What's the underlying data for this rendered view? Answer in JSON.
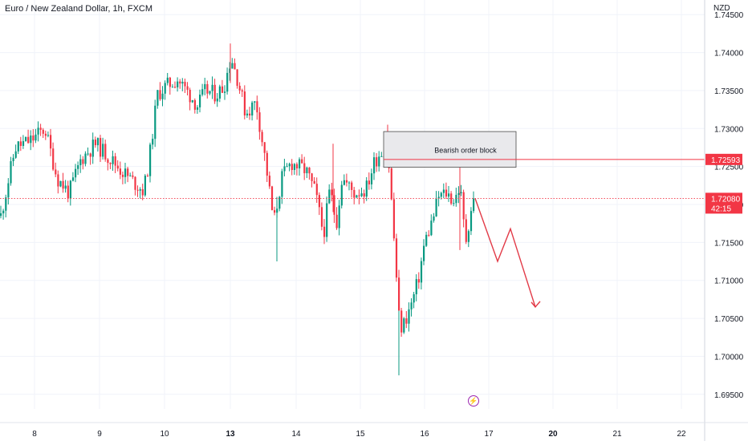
{
  "header": {
    "symbol_title": "Euro / New Zealand Dollar, 1h, FXCM",
    "currency": "NZD"
  },
  "price_axis": {
    "ticks": [
      "1.74500",
      "1.74000",
      "1.73500",
      "1.73000",
      "1.72500",
      "1.72000",
      "1.71500",
      "1.71000",
      "1.70500",
      "1.70000",
      "1.69500"
    ]
  },
  "time_axis": {
    "ticks": [
      {
        "label": "8",
        "bold": false
      },
      {
        "label": "9",
        "bold": false
      },
      {
        "label": "10",
        "bold": false
      },
      {
        "label": "13",
        "bold": true
      },
      {
        "label": "14",
        "bold": false
      },
      {
        "label": "15",
        "bold": false
      },
      {
        "label": "16",
        "bold": false
      },
      {
        "label": "17",
        "bold": false
      },
      {
        "label": "20",
        "bold": true
      },
      {
        "label": "21",
        "bold": false
      },
      {
        "label": "22",
        "bold": false
      }
    ]
  },
  "price_tags": {
    "level": "1.72593",
    "current": "1.72080",
    "countdown": "42:15"
  },
  "annotation": {
    "order_block_label": "Bearish order block"
  },
  "icons": {
    "flash": "lightning-icon",
    "flash_glyph": "⚡"
  },
  "colors": {
    "up": "#089981",
    "down": "#f23645",
    "tag": "#f23645",
    "order_block_fill": "#e9e9ec",
    "arrow": "#e23a47"
  },
  "chart_data": {
    "type": "candlestick",
    "title": "Euro / New Zealand Dollar, 1h, FXCM",
    "ylabel": "NZD",
    "ylim": [
      1.6935,
      1.7465
    ],
    "x_labels": [
      "8",
      "9",
      "10",
      "13",
      "14",
      "15",
      "16",
      "17",
      "20",
      "21",
      "22"
    ],
    "horizontal_level": 1.72593,
    "current_price": 1.7208,
    "order_block": {
      "label": "Bearish order block",
      "top": 1.7296,
      "bottom": 1.7249
    },
    "projection_path": [
      1.7208,
      1.7125,
      1.7168,
      1.7065
    ],
    "anchors": [
      {
        "t": 0,
        "p": 1.7185
      },
      {
        "t": 18,
        "p": 1.7275
      },
      {
        "t": 38,
        "p": 1.7285
      },
      {
        "t": 55,
        "p": 1.73
      },
      {
        "t": 70,
        "p": 1.7235
      },
      {
        "t": 85,
        "p": 1.7215
      },
      {
        "t": 100,
        "p": 1.726
      },
      {
        "t": 118,
        "p": 1.728
      },
      {
        "t": 135,
        "p": 1.7262
      },
      {
        "t": 150,
        "p": 1.7245
      },
      {
        "t": 165,
        "p": 1.723
      },
      {
        "t": 178,
        "p": 1.7218
      },
      {
        "t": 185,
        "p": 1.726
      },
      {
        "t": 195,
        "p": 1.7345
      },
      {
        "t": 205,
        "p": 1.7355
      },
      {
        "t": 220,
        "p": 1.7365
      },
      {
        "t": 235,
        "p": 1.7345
      },
      {
        "t": 245,
        "p": 1.733
      },
      {
        "t": 255,
        "p": 1.735
      },
      {
        "t": 268,
        "p": 1.7345
      },
      {
        "t": 278,
        "p": 1.7355
      },
      {
        "t": 287,
        "p": 1.7395
      },
      {
        "t": 295,
        "p": 1.7365
      },
      {
        "t": 305,
        "p": 1.732
      },
      {
        "t": 318,
        "p": 1.7335
      },
      {
        "t": 330,
        "p": 1.7255
      },
      {
        "t": 340,
        "p": 1.7175
      },
      {
        "t": 350,
        "p": 1.7235
      },
      {
        "t": 362,
        "p": 1.7255
      },
      {
        "t": 380,
        "p": 1.7245
      },
      {
        "t": 392,
        "p": 1.7215
      },
      {
        "t": 402,
        "p": 1.716
      },
      {
        "t": 410,
        "p": 1.722
      },
      {
        "t": 418,
        "p": 1.7175
      },
      {
        "t": 425,
        "p": 1.7235
      },
      {
        "t": 440,
        "p": 1.7215
      },
      {
        "t": 455,
        "p": 1.722
      },
      {
        "t": 465,
        "p": 1.7255
      },
      {
        "t": 472,
        "p": 1.7268
      },
      {
        "t": 482,
        "p": 1.7275
      },
      {
        "t": 487,
        "p": 1.72
      },
      {
        "t": 492,
        "p": 1.712
      },
      {
        "t": 497,
        "p": 1.7035
      },
      {
        "t": 503,
        "p": 1.7045
      },
      {
        "t": 512,
        "p": 1.707
      },
      {
        "t": 520,
        "p": 1.71
      },
      {
        "t": 528,
        "p": 1.715
      },
      {
        "t": 538,
        "p": 1.718
      },
      {
        "t": 545,
        "p": 1.721
      },
      {
        "t": 555,
        "p": 1.7215
      },
      {
        "t": 565,
        "p": 1.7205
      },
      {
        "t": 572,
        "p": 1.7225
      },
      {
        "t": 579,
        "p": 1.715
      },
      {
        "t": 586,
        "p": 1.7195
      },
      {
        "t": 590,
        "p": 1.7208
      }
    ]
  }
}
